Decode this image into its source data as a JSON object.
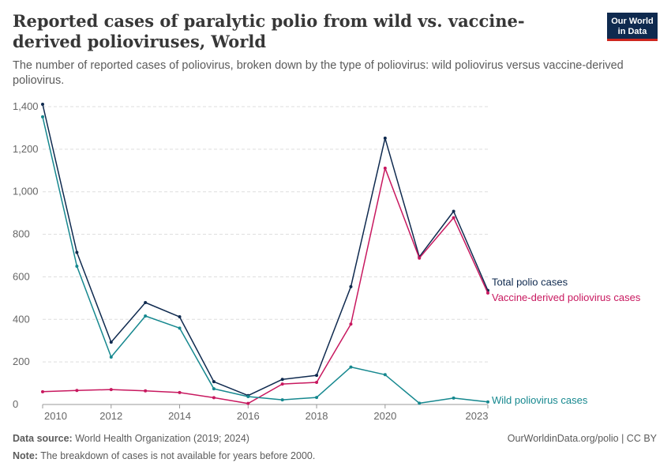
{
  "header": {
    "title": "Reported cases of paralytic polio from wild vs. vaccine-derived polioviruses, World",
    "subtitle": "The number of reported cases of poliovirus, broken down by the type of poliovirus: wild poliovirus versus vaccine-derived poliovirus.",
    "logo_line1": "Our World",
    "logo_line2": "in Data"
  },
  "footer": {
    "source_label": "Data source:",
    "source_text": "World Health Organization (2019; 2024)",
    "note_label": "Note:",
    "note_text": "The breakdown of cases is not available for years before 2000.",
    "link": "OurWorldinData.org/polio | CC BY"
  },
  "colors": {
    "total": "#0f2a4f",
    "vaccine": "#c8185f",
    "wild": "#16888f",
    "grid": "#dddddd"
  },
  "chart_data": {
    "type": "line",
    "x": [
      2010,
      2011,
      2012,
      2013,
      2014,
      2015,
      2016,
      2017,
      2018,
      2019,
      2020,
      2021,
      2022,
      2023
    ],
    "xticks": [
      2010,
      2012,
      2014,
      2016,
      2018,
      2020,
      2023
    ],
    "xtick_labels": [
      "2010",
      "2012",
      "2014",
      "2016",
      "2018",
      "2020",
      "2023"
    ],
    "yticks": [
      0,
      200,
      400,
      600,
      800,
      1000,
      1200,
      1400
    ],
    "ytick_labels": [
      "0",
      "200",
      "400",
      "600",
      "800",
      "1,000",
      "1,200",
      "1,400"
    ],
    "ylim": [
      0,
      1400
    ],
    "grid": true,
    "series": [
      {
        "name": "Total polio cases",
        "values": [
          1411,
          715,
          293,
          479,
          412,
          107,
          42,
          118,
          137,
          554,
          1252,
          694,
          908,
          536
        ]
      },
      {
        "name": "Vaccine-derived poliovirus cases",
        "values": [
          60,
          66,
          70,
          64,
          56,
          32,
          5,
          96,
          104,
          378,
          1111,
          688,
          878,
          524
        ]
      },
      {
        "name": "Wild poliovirus cases",
        "values": [
          1352,
          650,
          223,
          416,
          359,
          74,
          37,
          22,
          33,
          176,
          140,
          6,
          30,
          12
        ]
      }
    ]
  }
}
